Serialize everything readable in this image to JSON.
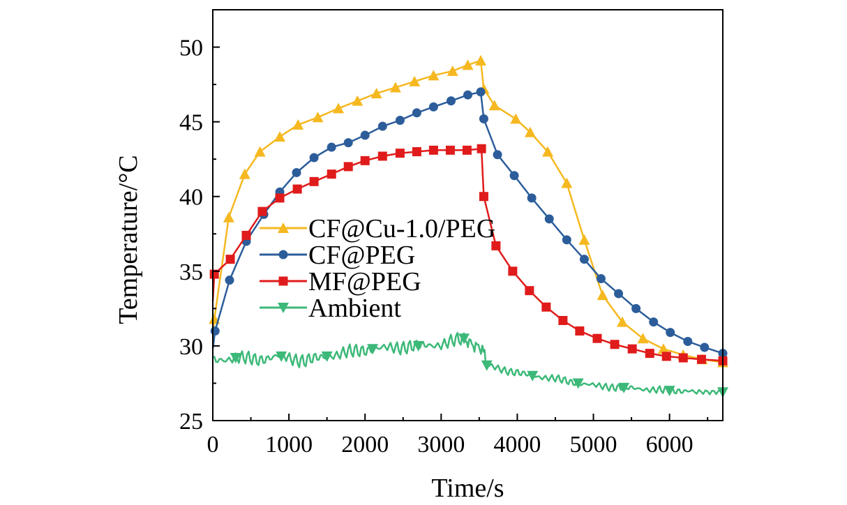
{
  "chart_data": {
    "type": "line",
    "title": "",
    "xlabel": "Time/s",
    "ylabel": "Temperature/°C",
    "xlim": [
      0,
      6700
    ],
    "ylim": [
      25,
      52.5
    ],
    "xticks": [
      0,
      1000,
      2000,
      3000,
      4000,
      5000,
      6000
    ],
    "yticks": [
      25,
      30,
      35,
      40,
      45,
      50
    ],
    "xtick_labels": [
      "0",
      "1000",
      "2000",
      "3000",
      "4000",
      "5000",
      "6000"
    ],
    "ytick_labels": [
      "25",
      "30",
      "35",
      "40",
      "45",
      "50"
    ],
    "legend_position": "center-left",
    "series": [
      {
        "name": "CF@Cu-1.0/PEG",
        "color": "#F5B820",
        "marker": "triangle-up",
        "x": [
          0,
          20,
          210,
          420,
          620,
          880,
          1120,
          1380,
          1650,
          1900,
          2150,
          2400,
          2650,
          2900,
          3150,
          3350,
          3520,
          3560,
          3700,
          3980,
          4170,
          4400,
          4650,
          4880,
          5120,
          5380,
          5650,
          5920,
          6180,
          6430,
          6700
        ],
        "y": [
          30.5,
          31.8,
          38.6,
          41.5,
          43.0,
          44.0,
          44.8,
          45.3,
          45.9,
          46.4,
          46.9,
          47.3,
          47.7,
          48.1,
          48.4,
          48.8,
          49.1,
          47.2,
          46.1,
          45.2,
          44.3,
          43.0,
          40.9,
          37.1,
          33.4,
          31.6,
          30.5,
          29.8,
          29.4,
          29.1,
          28.9
        ]
      },
      {
        "name": "CF@PEG",
        "color": "#2C5D9A",
        "marker": "circle",
        "x": [
          0,
          30,
          220,
          440,
          670,
          880,
          1100,
          1330,
          1560,
          1780,
          2000,
          2230,
          2460,
          2680,
          2900,
          3130,
          3350,
          3520,
          3560,
          3740,
          3960,
          4190,
          4420,
          4650,
          4880,
          5100,
          5330,
          5560,
          5790,
          6010,
          6240,
          6460,
          6700
        ],
        "y": [
          29.8,
          31.0,
          34.4,
          37.0,
          38.8,
          40.3,
          41.6,
          42.6,
          43.3,
          43.6,
          44.1,
          44.7,
          45.1,
          45.6,
          46.0,
          46.4,
          46.8,
          47.0,
          45.2,
          42.8,
          41.4,
          39.9,
          38.5,
          37.1,
          35.8,
          34.5,
          33.5,
          32.5,
          31.6,
          30.9,
          30.3,
          29.9,
          29.5
        ]
      },
      {
        "name": "MF@PEG",
        "color": "#E01B1B",
        "marker": "square",
        "x": [
          0,
          20,
          230,
          440,
          650,
          880,
          1110,
          1330,
          1560,
          1780,
          2000,
          2230,
          2460,
          2680,
          2900,
          3120,
          3340,
          3530,
          3560,
          3720,
          3940,
          4160,
          4380,
          4600,
          4820,
          5050,
          5280,
          5510,
          5740,
          5960,
          6180,
          6420,
          6700
        ],
        "y": [
          33.0,
          34.8,
          35.8,
          37.4,
          39.0,
          39.9,
          40.5,
          41.0,
          41.5,
          42.0,
          42.4,
          42.7,
          42.9,
          43.0,
          43.1,
          43.1,
          43.1,
          43.2,
          40.0,
          36.7,
          35.0,
          33.7,
          32.6,
          31.7,
          31.0,
          30.5,
          30.1,
          29.8,
          29.5,
          29.3,
          29.2,
          29.1,
          29.0
        ]
      },
      {
        "name": "Ambient",
        "color": "#3CB878",
        "marker": "triangle-down",
        "x": [
          0,
          300,
          600,
          900,
          1200,
          1500,
          1800,
          2100,
          2400,
          2700,
          3000,
          3300,
          3540,
          3600,
          3900,
          4200,
          4500,
          4800,
          5100,
          5400,
          5700,
          6000,
          6300,
          6700
        ],
        "y": [
          29.0,
          29.2,
          29.1,
          29.3,
          29.0,
          29.3,
          29.6,
          29.8,
          29.9,
          30.0,
          30.1,
          30.5,
          29.8,
          28.7,
          28.3,
          28.0,
          27.8,
          27.5,
          27.3,
          27.2,
          27.1,
          27.0,
          27.0,
          26.9
        ]
      }
    ]
  }
}
